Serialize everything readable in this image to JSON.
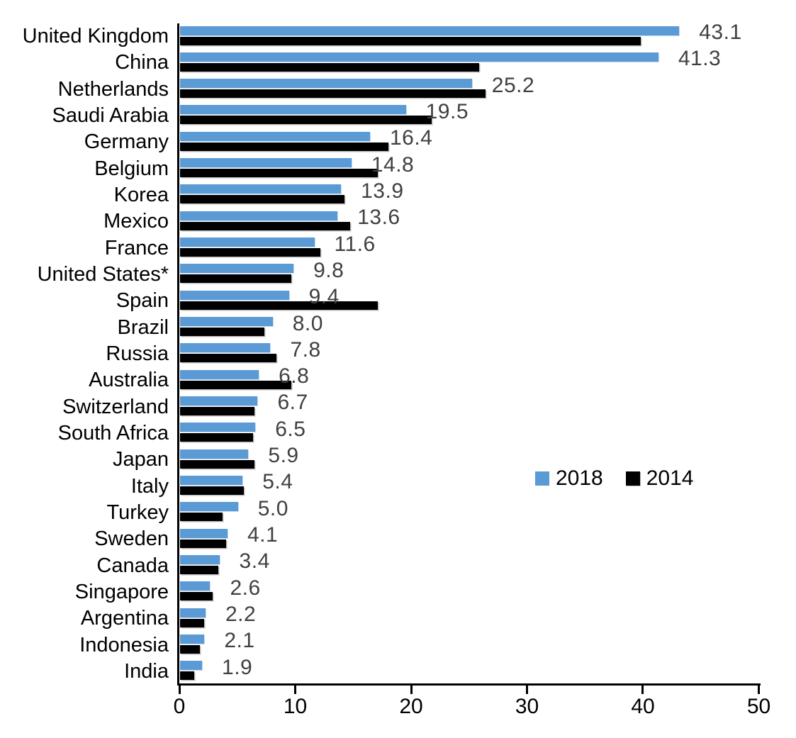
{
  "chart_data": {
    "type": "bar",
    "orientation": "horizontal",
    "title": "",
    "xlabel": "",
    "ylabel": "",
    "xlim": [
      0,
      50
    ],
    "x_ticks": [
      "0",
      "10",
      "20",
      "30",
      "40",
      "50"
    ],
    "grid": false,
    "legend_position": "middle-right",
    "categories": [
      "United Kingdom",
      "China",
      "Netherlands",
      "Saudi Arabia",
      "Germany",
      "Belgium",
      "Korea",
      "Mexico",
      "France",
      "United States*",
      "Spain",
      "Brazil",
      "Russia",
      "Australia",
      "Switzerland",
      "South Africa",
      "Japan",
      "Italy",
      "Turkey",
      "Sweden",
      "Canada",
      "Singapore",
      "Argentina",
      "Indonesia",
      "India"
    ],
    "series": [
      {
        "name": "2018",
        "color": "#5B9BD5",
        "values": [
          43.1,
          41.3,
          25.2,
          19.5,
          16.4,
          14.8,
          13.9,
          13.6,
          11.6,
          9.8,
          9.4,
          8.0,
          7.8,
          6.8,
          6.7,
          6.5,
          5.9,
          5.4,
          5.0,
          4.1,
          3.4,
          2.6,
          2.2,
          2.1,
          1.9
        ]
      },
      {
        "name": "2014",
        "color": "#000000",
        "values": [
          39.8,
          25.8,
          26.4,
          21.7,
          18.0,
          17.1,
          14.2,
          14.7,
          12.1,
          9.6,
          17.1,
          7.3,
          8.3,
          9.6,
          6.4,
          6.3,
          6.4,
          5.5,
          3.7,
          4.0,
          3.3,
          2.8,
          2.1,
          1.7,
          1.2
        ]
      }
    ],
    "data_labels": [
      "43.1",
      "41.3",
      "25.2",
      "19.5",
      "16.4",
      "14.8",
      "13.9",
      "13.6",
      "11.6",
      "9.8",
      "9.4",
      "8.0",
      "7.8",
      "6.8",
      "6.7",
      "6.5",
      "5.9",
      "5.4",
      "5.0",
      "4.1",
      "3.4",
      "2.6",
      "2.2",
      "2.1",
      "1.9"
    ],
    "data_label_color": "#404040",
    "data_label_series": "2018"
  },
  "legend": {
    "items": [
      {
        "label": "2018",
        "color": "#5B9BD5"
      },
      {
        "label": "2014",
        "color": "#000000"
      }
    ]
  }
}
